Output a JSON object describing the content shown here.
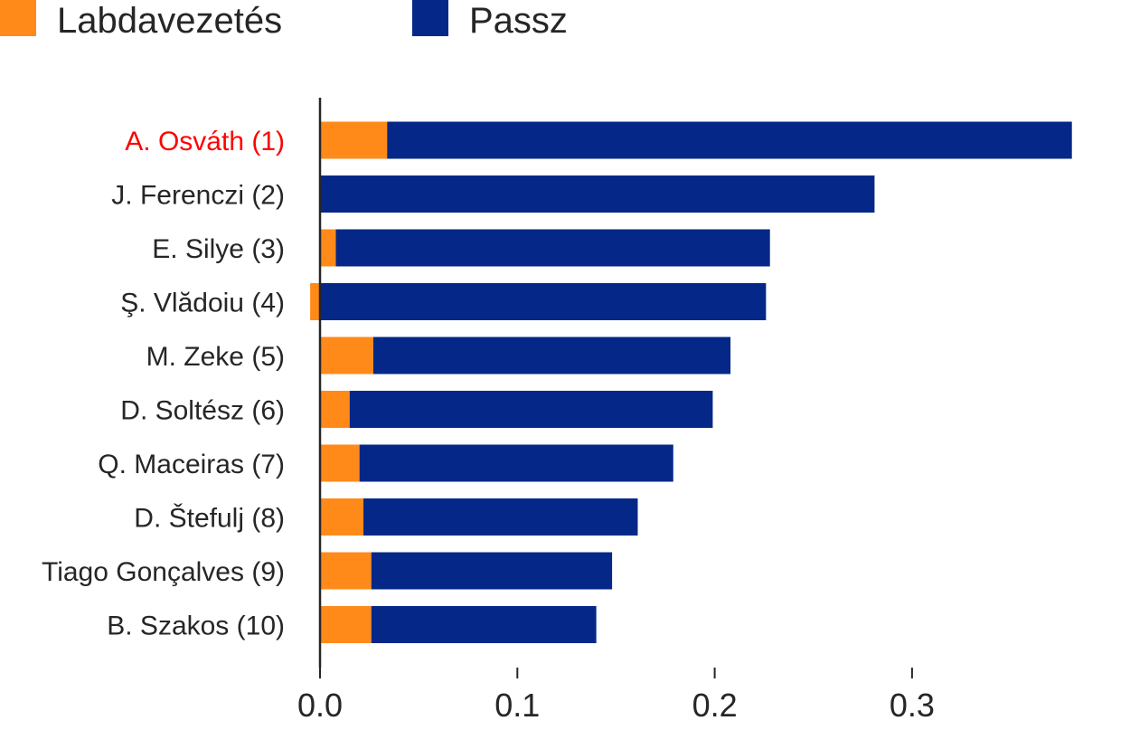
{
  "chart_data": {
    "type": "bar",
    "orientation": "horizontal",
    "stacked": true,
    "categories": [
      "A. Osváth (1)",
      "J. Ferenczi (2)",
      "E. Silye (3)",
      "Ş. Vlădoiu (4)",
      "M. Zeke (5)",
      "D. Soltész (6)",
      "Q. Maceiras (7)",
      "D. Štefulj (8)",
      "Tiago Gonçalves (9)",
      "B. Szakos (10)"
    ],
    "highlight_category": "A. Osváth (1)",
    "highlight_color": "#ff0000",
    "series": [
      {
        "name": "Labdavezetés",
        "color": "#ff8a1a",
        "values": [
          0.034,
          0.0,
          0.008,
          -0.005,
          0.027,
          0.015,
          0.02,
          0.022,
          0.026,
          0.026
        ]
      },
      {
        "name": "Passz",
        "color": "#052888",
        "values": [
          0.347,
          0.281,
          0.22,
          0.226,
          0.181,
          0.184,
          0.159,
          0.139,
          0.122,
          0.114
        ]
      }
    ],
    "xticks": [
      "0.0",
      "0.1",
      "0.2",
      "0.3"
    ],
    "xtick_values": [
      0.0,
      0.1,
      0.2,
      0.3
    ],
    "xlim": [
      -0.0016,
      0.4
    ],
    "title": "",
    "xlabel": "",
    "ylabel": "",
    "grid": false,
    "legend_position": "top-left"
  }
}
